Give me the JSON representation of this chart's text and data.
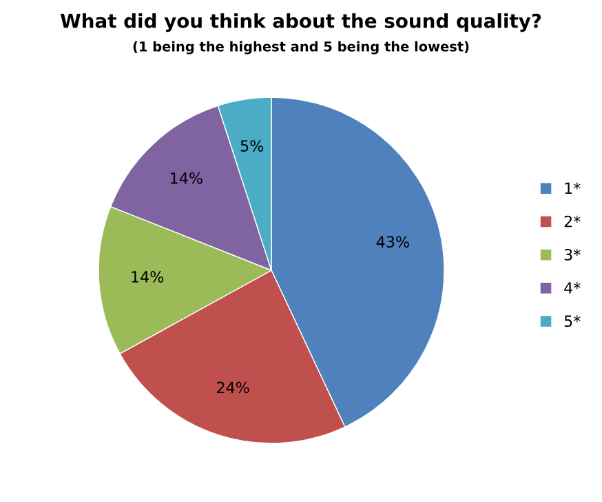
{
  "chart_data": {
    "type": "pie",
    "title": "What did you think about the sound quality?",
    "subtitle": "(1 being the highest and 5 being the lowest)",
    "categories": [
      "1*",
      "2*",
      "3*",
      "4*",
      "5*"
    ],
    "values": [
      43,
      24,
      14,
      14,
      5
    ],
    "colors": [
      "#4f81bd",
      "#c0504d",
      "#9bbb59",
      "#8064a2",
      "#4bacc6"
    ],
    "value_labels": [
      "43%",
      "24%",
      "14%",
      "14%",
      "5%"
    ],
    "legend": "right"
  }
}
